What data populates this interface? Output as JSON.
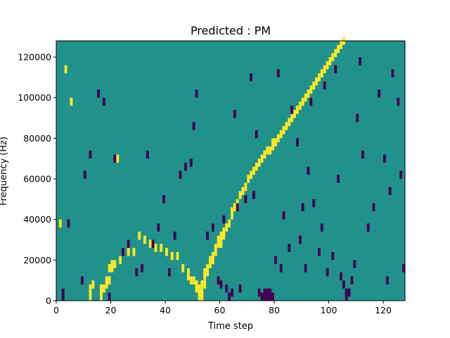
{
  "chart_data": {
    "type": "heatmap",
    "title": "Predicted : PM",
    "xlabel": "Time step",
    "ylabel": "Frequency (Hz)",
    "xlim": [
      0,
      128
    ],
    "ylim": [
      0,
      128000
    ],
    "xticks": [
      "0",
      "20",
      "40",
      "60",
      "80",
      "100",
      "120"
    ],
    "yticks": [
      "0",
      "20000",
      "40000",
      "60000",
      "80000",
      "100000",
      "120000"
    ],
    "grid": false,
    "legend": "none",
    "n_time_steps": 128,
    "n_frequency_bins": 32,
    "bin_hz": 4000,
    "colors": {
      "background": "#21918c",
      "high": "#fde725",
      "low": "#440154"
    },
    "cells_high": [
      [
        1,
        36
      ],
      [
        3,
        112
      ],
      [
        5,
        96
      ],
      [
        12,
        0
      ],
      [
        12,
        2
      ],
      [
        12,
        4
      ],
      [
        13,
        6
      ],
      [
        16,
        0
      ],
      [
        16,
        2
      ],
      [
        16,
        4
      ],
      [
        17,
        4
      ],
      [
        18,
        6
      ],
      [
        18,
        8
      ],
      [
        19,
        8
      ],
      [
        19,
        14
      ],
      [
        20,
        14
      ],
      [
        20,
        16
      ],
      [
        21,
        16
      ],
      [
        23,
        18
      ],
      [
        22,
        68
      ],
      [
        26,
        22
      ],
      [
        28,
        22
      ],
      [
        30,
        30
      ],
      [
        32,
        28
      ],
      [
        34,
        26
      ],
      [
        36,
        24
      ],
      [
        38,
        24
      ],
      [
        40,
        22
      ],
      [
        42,
        20
      ],
      [
        44,
        20
      ],
      [
        46,
        14
      ],
      [
        48,
        10
      ],
      [
        48,
        12
      ],
      [
        49,
        8
      ],
      [
        50,
        8
      ],
      [
        51,
        6
      ],
      [
        51,
        4
      ],
      [
        52,
        4
      ],
      [
        52,
        2
      ],
      [
        52,
        0
      ],
      [
        53,
        0
      ],
      [
        53,
        2
      ],
      [
        53,
        6
      ],
      [
        54,
        6
      ],
      [
        54,
        10
      ],
      [
        54,
        12
      ],
      [
        55,
        12
      ],
      [
        55,
        14
      ],
      [
        56,
        16
      ],
      [
        56,
        18
      ],
      [
        57,
        18
      ],
      [
        57,
        20
      ],
      [
        58,
        22
      ],
      [
        58,
        24
      ],
      [
        59,
        26
      ],
      [
        59,
        28
      ],
      [
        60,
        26
      ],
      [
        60,
        30
      ],
      [
        61,
        30
      ],
      [
        61,
        32
      ],
      [
        62,
        34
      ],
      [
        63,
        36
      ],
      [
        64,
        40
      ],
      [
        64,
        42
      ],
      [
        65,
        44
      ],
      [
        66,
        46
      ],
      [
        67,
        50
      ],
      [
        68,
        52
      ],
      [
        69,
        54
      ],
      [
        70,
        58
      ],
      [
        71,
        60
      ],
      [
        72,
        62
      ],
      [
        73,
        64
      ],
      [
        74,
        66
      ],
      [
        75,
        68
      ],
      [
        76,
        70
      ],
      [
        77,
        72
      ],
      [
        78,
        72
      ],
      [
        79,
        74
      ],
      [
        79,
        76
      ],
      [
        80,
        76
      ],
      [
        81,
        78
      ],
      [
        82,
        80
      ],
      [
        83,
        82
      ],
      [
        84,
        84
      ],
      [
        85,
        86
      ],
      [
        86,
        88
      ],
      [
        87,
        90
      ],
      [
        88,
        92
      ],
      [
        89,
        94
      ],
      [
        90,
        96
      ],
      [
        91,
        98
      ],
      [
        92,
        100
      ],
      [
        93,
        102
      ],
      [
        94,
        104
      ],
      [
        95,
        106
      ],
      [
        96,
        108
      ],
      [
        97,
        110
      ],
      [
        98,
        112
      ],
      [
        99,
        114
      ],
      [
        100,
        116
      ],
      [
        101,
        118
      ],
      [
        102,
        120
      ],
      [
        103,
        122
      ],
      [
        104,
        124
      ],
      [
        105,
        126
      ]
    ],
    "cells_low": [
      [
        2,
        0
      ],
      [
        2,
        2
      ],
      [
        4,
        36
      ],
      [
        9,
        8
      ],
      [
        10,
        60
      ],
      [
        12,
        70
      ],
      [
        15,
        100
      ],
      [
        17,
        96
      ],
      [
        19,
        0
      ],
      [
        21,
        68
      ],
      [
        24,
        22
      ],
      [
        26,
        26
      ],
      [
        29,
        12
      ],
      [
        31,
        14
      ],
      [
        33,
        70
      ],
      [
        35,
        26
      ],
      [
        37,
        34
      ],
      [
        39,
        48
      ],
      [
        41,
        12
      ],
      [
        43,
        30
      ],
      [
        45,
        60
      ],
      [
        47,
        64
      ],
      [
        49,
        66
      ],
      [
        50,
        84
      ],
      [
        51,
        100
      ],
      [
        55,
        30
      ],
      [
        57,
        34
      ],
      [
        59,
        8
      ],
      [
        60,
        6
      ],
      [
        61,
        38
      ],
      [
        62,
        4
      ],
      [
        63,
        0
      ],
      [
        64,
        2
      ],
      [
        65,
        90
      ],
      [
        66,
        44
      ],
      [
        67,
        4
      ],
      [
        69,
        48
      ],
      [
        71,
        108
      ],
      [
        72,
        50
      ],
      [
        73,
        80
      ],
      [
        74,
        2
      ],
      [
        75,
        0
      ],
      [
        76,
        0
      ],
      [
        76,
        2
      ],
      [
        77,
        0
      ],
      [
        77,
        2
      ],
      [
        78,
        0
      ],
      [
        78,
        2
      ],
      [
        79,
        0
      ],
      [
        80,
        18
      ],
      [
        81,
        110
      ],
      [
        82,
        14
      ],
      [
        83,
        40
      ],
      [
        85,
        24
      ],
      [
        86,
        92
      ],
      [
        88,
        76
      ],
      [
        89,
        28
      ],
      [
        90,
        44
      ],
      [
        91,
        14
      ],
      [
        92,
        62
      ],
      [
        93,
        96
      ],
      [
        94,
        46
      ],
      [
        96,
        22
      ],
      [
        97,
        34
      ],
      [
        98,
        104
      ],
      [
        99,
        12
      ],
      [
        101,
        20
      ],
      [
        102,
        112
      ],
      [
        103,
        58
      ],
      [
        104,
        10
      ],
      [
        105,
        6
      ],
      [
        106,
        0
      ],
      [
        106,
        2
      ],
      [
        107,
        2
      ],
      [
        108,
        8
      ],
      [
        109,
        16
      ],
      [
        110,
        88
      ],
      [
        111,
        116
      ],
      [
        112,
        70
      ],
      [
        114,
        34
      ],
      [
        116,
        44
      ],
      [
        118,
        100
      ],
      [
        120,
        68
      ],
      [
        121,
        8
      ],
      [
        122,
        52
      ],
      [
        123,
        110
      ],
      [
        125,
        96
      ],
      [
        126,
        60
      ],
      [
        127,
        14
      ]
    ]
  }
}
